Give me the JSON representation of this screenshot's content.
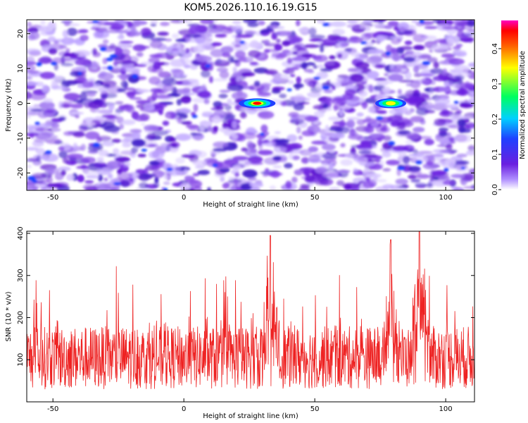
{
  "chart_data": [
    {
      "type": "heatmap",
      "title": "KOM5.2026.110.16.19.G15",
      "xlabel": "Height of straight line (km)",
      "ylabel": "Frequency (Hz)",
      "xlim": [
        -60,
        111
      ],
      "ylim": [
        -25,
        24
      ],
      "xticks": [
        -50,
        0,
        50,
        100
      ],
      "yticks": [
        -20,
        -10,
        0,
        10,
        20
      ],
      "colorbar": {
        "label": "Normalized spectral amplitude",
        "range": [
          0,
          0.48
        ],
        "ticks": [
          "0.0",
          "0.1",
          "0.2",
          "0.3",
          "0.4"
        ]
      },
      "features": [
        {
          "x": 28,
          "y": 0,
          "peak": 0.45
        },
        {
          "x": 79,
          "y": 0,
          "peak": 0.3
        }
      ]
    },
    {
      "type": "line",
      "xlabel": "Height of straight line (km)",
      "ylabel": "SNR (10 * v/v)",
      "xlim": [
        -60,
        111
      ],
      "ylim": [
        0,
        405
      ],
      "xticks": [
        -50,
        0,
        50,
        100
      ],
      "yticks": [
        100,
        200,
        300,
        400
      ],
      "series_color": "#ee2222",
      "baseline_snr": 105,
      "notable_peaks": [
        {
          "x": 33,
          "y": 395
        },
        {
          "x": 79,
          "y": 385
        },
        {
          "x": 90,
          "y": 405
        }
      ]
    }
  ],
  "colors": {
    "heat_low": "#6a1fe0",
    "heat_mid": "#2040ff",
    "heat_high": "#ff0000",
    "line": "#ee2222"
  }
}
